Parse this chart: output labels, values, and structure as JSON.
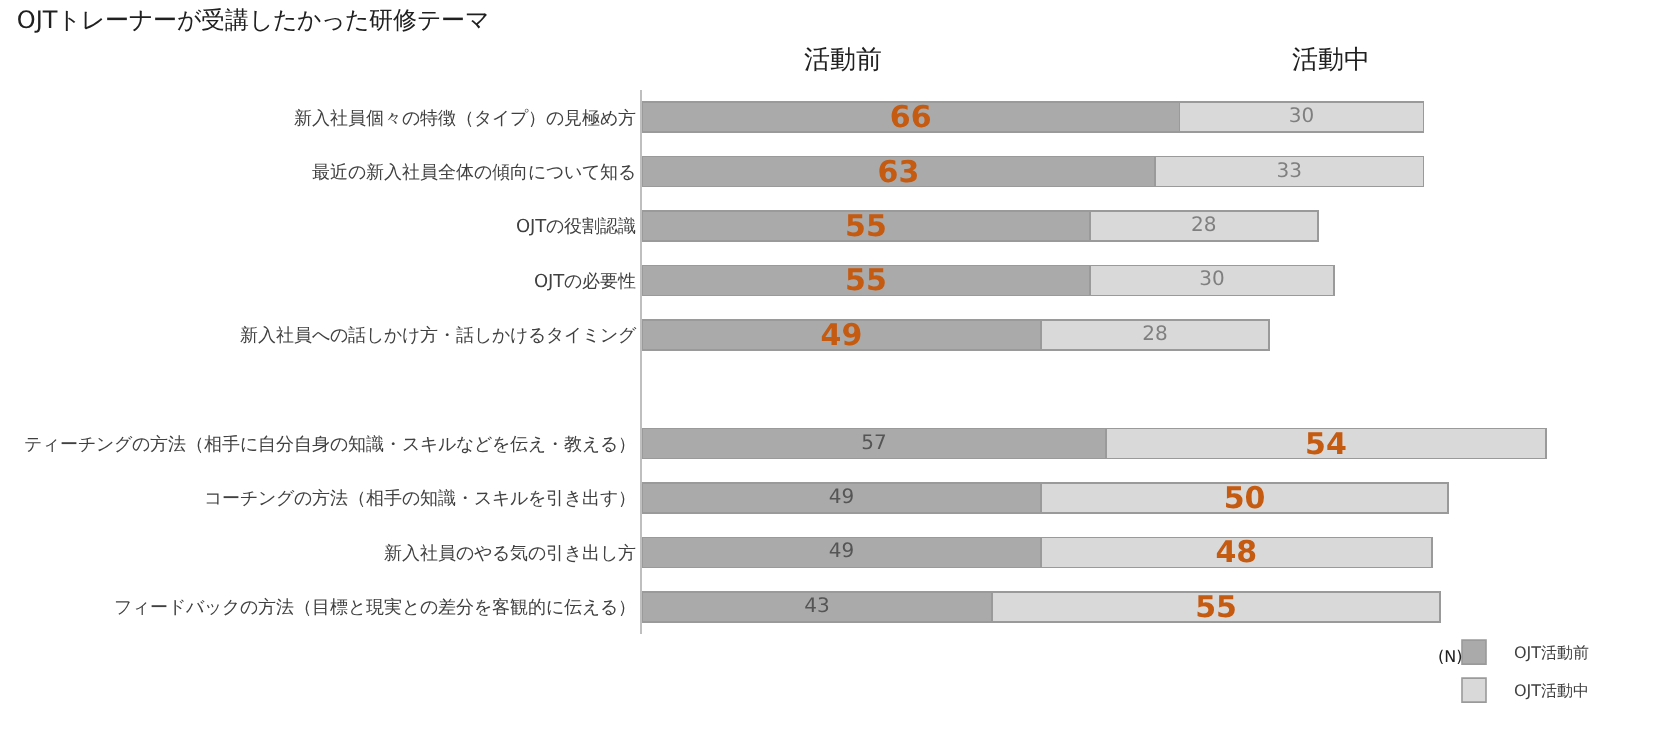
{
  "chart_data": {
    "type": "bar",
    "orientation": "horizontal",
    "stacked": true,
    "title": "OJTトレーナーが受講したかった研修テーマ",
    "categories": [
      "新入社員個々の特徴（タイプ）の見極め方",
      "最近の新入社員全体の傾向について知る",
      "OJTの役割認識",
      "OJTの必要性",
      "新入社員への話しかけ方・話しかけるタイミング",
      null,
      "ティーチングの方法（相手に自分自身の知識・スキルなどを伝え・教える）",
      "コーチングの方法（相手の知識・スキルを引き出す）",
      "新入社員のやる気の引き出し方",
      "フィードバックの方法（目標と現実との差分を客観的に伝える）"
    ],
    "series": [
      {
        "name": "OJT活動前",
        "color": "#aaaaaa",
        "values": [
          66,
          63,
          55,
          55,
          49,
          null,
          57,
          49,
          49,
          43
        ]
      },
      {
        "name": "OJT活動中",
        "color": "#d9d9d9",
        "values": [
          30,
          33,
          28,
          30,
          28,
          null,
          54,
          50,
          48,
          55
        ]
      }
    ],
    "data_labels": true,
    "legend": "bottom right",
    "annotations": [
      "活動前",
      "活動中",
      "(N)"
    ]
  }
}
